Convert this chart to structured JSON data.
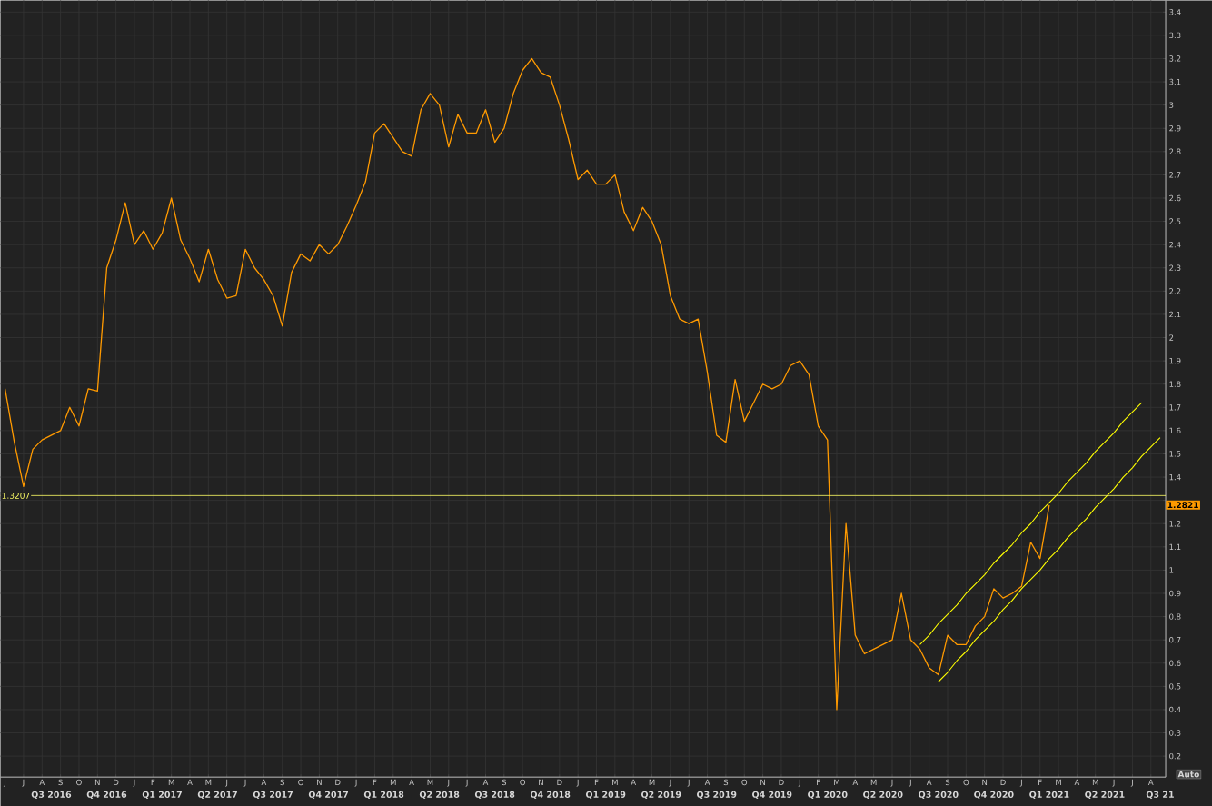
{
  "chart_data": {
    "type": "line",
    "grid": true,
    "ylim": [
      0.11,
      3.45
    ],
    "yticks": [
      0.2,
      0.3,
      0.4,
      0.5,
      0.6,
      0.7,
      0.8,
      0.9,
      1,
      1.1,
      1.2,
      {
        "value": 1.3,
        "label": null
      },
      1.4,
      1.5,
      1.6,
      1.7,
      1.8,
      1.9,
      2,
      2.1,
      2.2,
      2.3,
      2.4,
      2.5,
      2.6,
      2.7,
      2.8,
      2.9,
      3,
      3.1,
      3.2,
      3.3,
      3.4
    ],
    "categories": [
      "J",
      null,
      "J",
      null,
      "A",
      "Q3 2016",
      "S",
      null,
      "O",
      null,
      "N",
      "Q4 2016",
      "D",
      null,
      "J",
      null,
      "F",
      "Q1 2017",
      "M",
      null,
      "A",
      null,
      "M",
      "Q2 2017",
      "J",
      null,
      "J",
      null,
      "A",
      "Q3 2017",
      "S",
      null,
      "O",
      null,
      "N",
      "Q4 2017",
      "D",
      null,
      "J",
      null,
      "F",
      "Q1 2018",
      "M",
      null,
      "A",
      null,
      "M",
      "Q2 2018",
      "J",
      null,
      "J",
      null,
      "A",
      "Q3 2018",
      "S",
      null,
      "O",
      null,
      "N",
      "Q4 2018",
      "D",
      null,
      "J",
      null,
      "F",
      "Q1 2019",
      "M",
      null,
      "A",
      null,
      "M",
      "Q2 2019",
      "J",
      null,
      "J",
      null,
      "A",
      "Q3 2019",
      "S",
      null,
      "O",
      null,
      "N",
      "Q4 2019",
      "D",
      null,
      "J",
      null,
      "F",
      "Q1 2020",
      "M",
      null,
      "A",
      null,
      "M",
      "Q2 2020",
      "J",
      null,
      "J",
      null,
      "A",
      "Q3 2020",
      "S",
      null,
      "O",
      null,
      "N",
      "Q4 2020",
      "D",
      null,
      "J",
      null,
      "F",
      "Q1 2021",
      "M",
      null,
      "A",
      null,
      "M",
      "Q2 2021",
      "J",
      null,
      "J",
      null,
      "A",
      "Q3 21"
    ],
    "series": [
      {
        "color": "#ff9a00",
        "values": [
          1.78,
          1.55,
          1.36,
          1.52,
          1.56,
          1.58,
          1.6,
          1.7,
          1.62,
          1.78,
          1.77,
          2.3,
          2.42,
          2.58,
          2.4,
          2.46,
          2.38,
          2.45,
          2.6,
          2.42,
          2.34,
          2.24,
          2.38,
          2.25,
          2.17,
          2.18,
          2.38,
          2.3,
          2.25,
          2.18,
          2.05,
          2.28,
          2.36,
          2.33,
          2.4,
          2.36,
          2.4,
          2.48,
          2.57,
          2.67,
          2.88,
          2.92,
          2.86,
          2.8,
          2.78,
          2.98,
          3.05,
          3.0,
          2.82,
          2.96,
          2.88,
          2.88,
          2.98,
          2.84,
          2.9,
          3.05,
          3.15,
          3.2,
          3.14,
          3.12,
          3.0,
          2.85,
          2.68,
          2.72,
          2.66,
          2.66,
          2.7,
          2.54,
          2.46,
          2.56,
          2.5,
          2.4,
          2.18,
          2.08,
          2.06,
          2.08,
          1.85,
          1.58,
          1.55,
          1.82,
          1.64,
          1.72,
          1.8,
          1.78,
          1.8,
          1.88,
          1.9,
          1.84,
          1.62,
          1.56,
          0.4,
          1.2,
          0.72,
          0.64,
          0.66,
          0.68,
          0.7,
          0.9,
          0.7,
          0.66,
          0.58,
          0.55,
          0.72,
          0.68,
          0.68,
          0.76,
          0.8,
          0.92,
          0.88,
          0.9,
          0.93,
          1.12,
          1.05,
          1.28,
          null,
          null,
          null,
          null,
          null,
          null,
          null,
          null,
          null,
          null,
          null,
          null
        ]
      },
      {
        "color": "#ffff00",
        "values": [
          null,
          null,
          null,
          null,
          null,
          null,
          null,
          null,
          null,
          null,
          null,
          null,
          null,
          null,
          null,
          null,
          null,
          null,
          null,
          null,
          null,
          null,
          null,
          null,
          null,
          null,
          null,
          null,
          null,
          null,
          null,
          null,
          null,
          null,
          null,
          null,
          null,
          null,
          null,
          null,
          null,
          null,
          null,
          null,
          null,
          null,
          null,
          null,
          null,
          null,
          null,
          null,
          null,
          null,
          null,
          null,
          null,
          null,
          null,
          null,
          null,
          null,
          null,
          null,
          null,
          null,
          null,
          null,
          null,
          null,
          null,
          null,
          null,
          null,
          null,
          null,
          null,
          null,
          null,
          null,
          null,
          null,
          null,
          null,
          null,
          null,
          null,
          null,
          null,
          null,
          null,
          null,
          null,
          null,
          null,
          null,
          null,
          null,
          null,
          0.68,
          0.72,
          0.77,
          0.81,
          0.85,
          0.9,
          0.94,
          0.98,
          1.03,
          1.07,
          1.11,
          1.16,
          1.2,
          1.25,
          1.29,
          1.33,
          1.38,
          1.42,
          1.46,
          1.51,
          1.55,
          1.59,
          1.64,
          1.68,
          1.72,
          null,
          null
        ]
      },
      {
        "color": "#ffff00",
        "values": [
          null,
          null,
          null,
          null,
          null,
          null,
          null,
          null,
          null,
          null,
          null,
          null,
          null,
          null,
          null,
          null,
          null,
          null,
          null,
          null,
          null,
          null,
          null,
          null,
          null,
          null,
          null,
          null,
          null,
          null,
          null,
          null,
          null,
          null,
          null,
          null,
          null,
          null,
          null,
          null,
          null,
          null,
          null,
          null,
          null,
          null,
          null,
          null,
          null,
          null,
          null,
          null,
          null,
          null,
          null,
          null,
          null,
          null,
          null,
          null,
          null,
          null,
          null,
          null,
          null,
          null,
          null,
          null,
          null,
          null,
          null,
          null,
          null,
          null,
          null,
          null,
          null,
          null,
          null,
          null,
          null,
          null,
          null,
          null,
          null,
          null,
          null,
          null,
          null,
          null,
          null,
          null,
          null,
          null,
          null,
          null,
          null,
          null,
          null,
          null,
          null,
          0.52,
          0.56,
          0.61,
          0.65,
          0.7,
          0.74,
          0.78,
          0.83,
          0.87,
          0.92,
          0.96,
          1.0,
          1.05,
          1.09,
          1.14,
          1.18,
          1.22,
          1.27,
          1.31,
          1.35,
          1.4,
          1.44,
          1.49,
          1.53,
          1.57
        ]
      }
    ],
    "ref_lines": [
      {
        "axis": "y",
        "value": 1.3207,
        "label": "1.3207",
        "color": "#ffff66"
      }
    ],
    "annotations": [
      "1.2821",
      "Auto"
    ]
  }
}
